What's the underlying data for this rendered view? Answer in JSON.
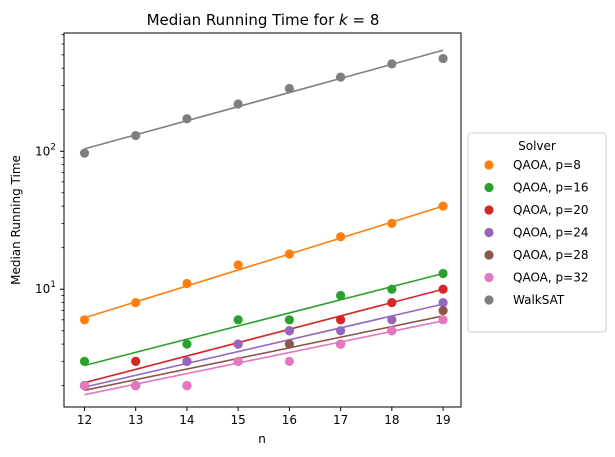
{
  "chart_data": {
    "type": "scatter",
    "title_prefix": "Median Running Time for ",
    "title_var": "k",
    "title_suffix": " = 8",
    "xlabel": "n",
    "ylabel": "Median Running Time",
    "yscale": "log",
    "xlim": [
      11.6,
      19.35
    ],
    "ylim": [
      1.4,
      720
    ],
    "x": [
      12,
      13,
      14,
      15,
      16,
      17,
      18,
      19
    ],
    "xtick_labels": [
      "12",
      "13",
      "14",
      "15",
      "16",
      "17",
      "18",
      "19"
    ],
    "ytick_labels": [
      {
        "value": 10,
        "base": "10",
        "exp": "1"
      },
      {
        "value": 100,
        "base": "10",
        "exp": "2"
      }
    ],
    "legend_title": "Solver",
    "legend_position": "right, outside",
    "grid": false,
    "series": [
      {
        "name": "QAOA, p=8",
        "color": "#ff7f0e",
        "values": [
          6,
          8,
          11,
          15,
          18,
          24,
          30,
          40
        ],
        "fit": [
          6.2,
          40
        ]
      },
      {
        "name": "QAOA, p=16",
        "color": "#2ca02c",
        "values": [
          3,
          3,
          4,
          6,
          6,
          9,
          10,
          13
        ],
        "fit": [
          2.8,
          13
        ]
      },
      {
        "name": "QAOA, p=20",
        "color": "#d62728",
        "values": [
          2,
          3,
          3,
          4,
          5,
          6,
          8,
          10
        ],
        "fit": [
          2.1,
          10
        ]
      },
      {
        "name": "QAOA, p=24",
        "color": "#9467bd",
        "values": [
          2,
          2,
          3,
          4,
          5,
          5,
          6,
          8
        ],
        "fit": [
          1.95,
          7.8
        ]
      },
      {
        "name": "QAOA, p=28",
        "color": "#8c564b",
        "values": [
          2,
          2,
          2,
          3,
          4,
          4,
          5,
          7
        ],
        "fit": [
          1.85,
          6.4
        ]
      },
      {
        "name": "QAOA, p=32",
        "color": "#e377c2",
        "values": [
          2,
          2,
          2,
          3,
          3,
          4,
          5,
          6
        ],
        "fit": [
          1.72,
          5.9
        ]
      },
      {
        "name": "WalkSAT",
        "color": "#7f7f7f",
        "values": [
          97,
          130,
          172,
          220,
          285,
          345,
          430,
          470
        ],
        "fit": [
          104,
          540
        ]
      }
    ]
  }
}
